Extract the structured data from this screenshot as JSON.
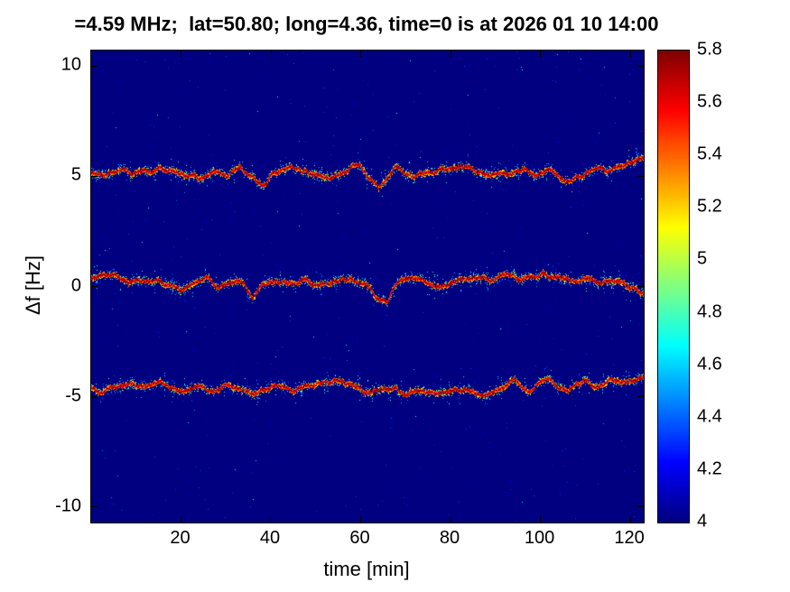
{
  "chart_data": {
    "type": "heatmap",
    "title": "=4.59 MHz;  lat=50.80; long=4.36, time=0 is at 2026 01 10 14:00",
    "xlabel": "time [min]",
    "ylabel": "Δf [Hz]",
    "xlim": [
      0,
      123
    ],
    "ylim": [
      -10.7,
      10.7
    ],
    "xticks": [
      20,
      40,
      60,
      80,
      100,
      120
    ],
    "yticks": [
      10,
      5,
      0,
      -5,
      -10
    ],
    "grid": false,
    "colormap": "jet",
    "background_value": 4,
    "colorbar": {
      "position": "right",
      "min": 4,
      "max": 5.8,
      "tick_labels": [
        "4",
        "4.2",
        "4.4",
        "4.6",
        "4.8",
        "5",
        "5.2",
        "5.4",
        "5.6",
        "5.8"
      ]
    },
    "series": [
      {
        "name": "upper-doppler-trace",
        "center_hz": 5,
        "t": [
          0,
          3,
          6,
          9,
          12,
          15,
          18,
          21,
          24,
          27,
          30,
          33,
          36,
          38,
          41,
          44,
          47,
          50,
          53,
          56,
          58,
          60,
          62,
          64,
          66,
          68,
          70,
          72,
          75,
          78,
          81,
          84,
          87,
          90,
          93,
          96,
          99,
          102,
          104,
          107,
          110,
          113,
          115,
          118,
          120,
          123
        ],
        "f": [
          5.2,
          5.0,
          5.3,
          5.1,
          5.2,
          5.4,
          5.2,
          5.1,
          5.0,
          5.3,
          4.9,
          5.5,
          5.0,
          4.7,
          5.2,
          5.5,
          5.3,
          5.1,
          4.9,
          5.2,
          5.4,
          5.5,
          5.0,
          4.5,
          5.1,
          5.6,
          5.3,
          4.9,
          5.2,
          5.3,
          5.2,
          5.4,
          5.2,
          5.1,
          5.3,
          5.4,
          5.1,
          5.3,
          5.0,
          4.9,
          5.2,
          5.5,
          5.2,
          5.5,
          5.7,
          5.9
        ]
      },
      {
        "name": "center-doppler-trace",
        "center_hz": 0,
        "t": [
          0,
          3,
          6,
          9,
          12,
          15,
          18,
          20,
          23,
          26,
          28,
          31,
          34,
          36,
          38,
          41,
          44,
          47,
          50,
          53,
          56,
          59,
          62,
          64,
          66,
          68,
          71,
          74,
          77,
          80,
          83,
          86,
          89,
          92,
          95,
          98,
          101,
          104,
          107,
          110,
          113,
          116,
          119,
          123
        ],
        "f": [
          0.4,
          0.5,
          0.3,
          0.2,
          0.3,
          0.4,
          0.0,
          -0.3,
          0.2,
          0.4,
          -0.2,
          0.3,
          0.1,
          -0.6,
          0.1,
          0.2,
          0.0,
          0.3,
          0.1,
          0.0,
          0.4,
          0.3,
          0.0,
          -0.5,
          -0.7,
          0.2,
          0.3,
          0.1,
          0.0,
          0.1,
          0.3,
          0.4,
          0.2,
          0.5,
          0.3,
          0.5,
          0.6,
          0.4,
          0.3,
          0.4,
          0.2,
          0.3,
          0.1,
          -0.3
        ]
      },
      {
        "name": "lower-doppler-trace",
        "center_hz": -5,
        "t": [
          0,
          3,
          6,
          9,
          12,
          15,
          18,
          21,
          24,
          27,
          30,
          33,
          36,
          39,
          42,
          45,
          48,
          51,
          54,
          56,
          59,
          62,
          65,
          68,
          71,
          74,
          77,
          80,
          83,
          86,
          89,
          92,
          94,
          96,
          98,
          100,
          102,
          104,
          106,
          108,
          110,
          112,
          114,
          116,
          118,
          120,
          123
        ],
        "f": [
          -4.5,
          -4.7,
          -4.6,
          -4.4,
          -4.6,
          -4.5,
          -4.7,
          -4.8,
          -4.5,
          -4.7,
          -4.4,
          -4.6,
          -4.8,
          -4.5,
          -4.4,
          -4.6,
          -4.5,
          -4.4,
          -4.3,
          -4.2,
          -4.6,
          -4.7,
          -4.5,
          -4.6,
          -4.8,
          -4.7,
          -4.9,
          -4.7,
          -4.6,
          -4.8,
          -4.9,
          -4.5,
          -4.2,
          -4.5,
          -4.7,
          -4.4,
          -4.2,
          -4.5,
          -4.7,
          -4.4,
          -4.3,
          -4.6,
          -4.4,
          -4.2,
          -4.4,
          -4.3,
          -4.2
        ]
      }
    ],
    "colors": {
      "background_blue": "#00008f",
      "trace_core_red": "#800000",
      "axis_color": "#000000"
    }
  }
}
